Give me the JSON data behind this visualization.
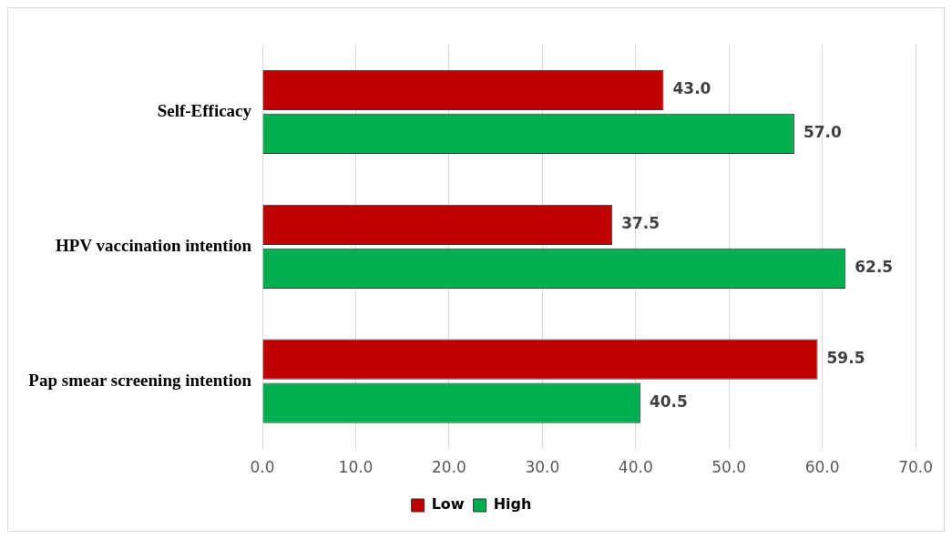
{
  "chart_data": {
    "type": "bar",
    "orientation": "horizontal",
    "categories": [
      "Self-Efficacy",
      "HPV vaccination intention",
      "Pap smear screening intention"
    ],
    "series": [
      {
        "name": "Low",
        "color": "#c00000",
        "values": [
          43.0,
          37.5,
          59.5
        ],
        "value_labels": [
          "43.0",
          "37.5",
          "59.5"
        ]
      },
      {
        "name": "High",
        "color": "#00b050",
        "values": [
          57.0,
          62.5,
          40.5
        ],
        "value_labels": [
          "57.0",
          "62.5",
          "40.5"
        ]
      }
    ],
    "xlim": [
      0,
      70
    ],
    "xticks": [
      {
        "value": 0,
        "label": "0.0"
      },
      {
        "value": 10,
        "label": "10.0"
      },
      {
        "value": 20,
        "label": "20.0"
      },
      {
        "value": 30,
        "label": "30.0"
      },
      {
        "value": 40,
        "label": "40.0"
      },
      {
        "value": 50,
        "label": "50.0"
      },
      {
        "value": 60,
        "label": "60.0"
      },
      {
        "value": 70,
        "label": "70.0"
      }
    ],
    "grid": "x",
    "legend": "bottom"
  }
}
